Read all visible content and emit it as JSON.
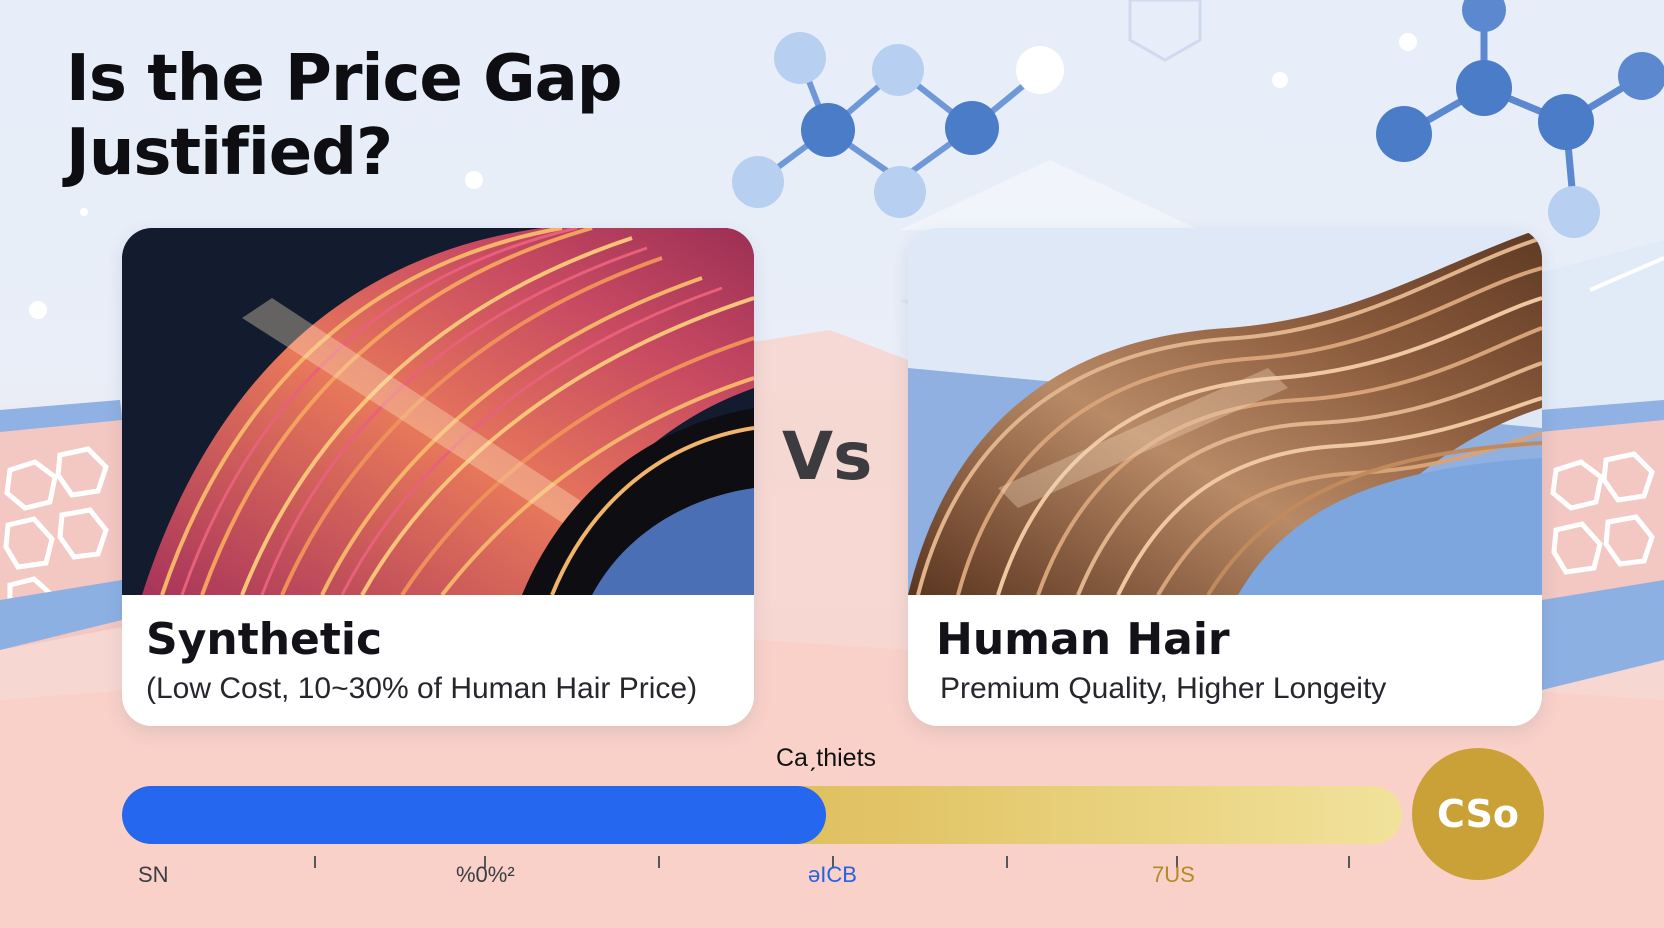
{
  "title": {
    "line1": "Is the Price Gap",
    "line2": "Justified?"
  },
  "comparison": {
    "left": {
      "label": "Synthetic",
      "subtitle": "(Low Cost, 10~30% of Human Hair Price)"
    },
    "vs_text": "Vs",
    "right": {
      "label": "Human Hair",
      "subtitle": "Premium Quality, Higher Longeity"
    }
  },
  "price_scale": {
    "caption": "Caˏthiets",
    "fill_fraction": 0.55,
    "badge_text": "CSo",
    "tick_labels": [
      "SN",
      "%0%²",
      "əICB",
      "7US"
    ]
  },
  "colors": {
    "bar_fill": "#2567ef",
    "bar_track": "#d0a53c",
    "badge": "#c9a136",
    "tick_label_blue": "#2463e0",
    "tick_label_gold": "#b48a26"
  },
  "icons": [
    "molecule-icon",
    "molecule-icon",
    "hair-swatch-synthetic",
    "hair-swatch-human",
    "skin-cells-pattern"
  ]
}
